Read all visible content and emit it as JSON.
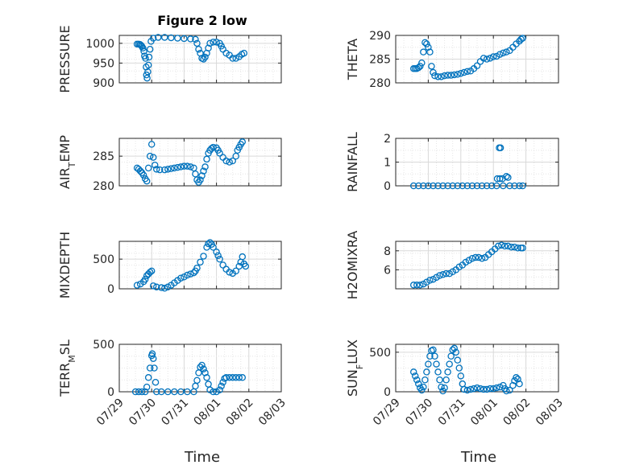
{
  "figure_title": "Figure 2 low",
  "x_axis_label": "Time",
  "x_tick_labels": [
    "07/29",
    "07/30",
    "07/31",
    "08/01",
    "08/02",
    "08/03"
  ],
  "marker_color": "#0072BD",
  "chart_data": [
    {
      "type": "scatter",
      "title": "Figure 2 low",
      "ylabel": "PRESSURE",
      "xlabel": "",
      "x_range": [
        0,
        4
      ],
      "ylim": [
        900,
        1020
      ],
      "yticks": [
        900,
        950,
        1000
      ],
      "grid": true,
      "marker": "open-circle",
      "points": [
        [
          0.55,
          998
        ],
        [
          0.6,
          998
        ],
        [
          0.64,
          997
        ],
        [
          0.67,
          995
        ],
        [
          0.7,
          992
        ],
        [
          0.73,
          988
        ],
        [
          0.76,
          980
        ],
        [
          0.78,
          968
        ],
        [
          0.81,
          962
        ],
        [
          0.83,
          940
        ],
        [
          0.84,
          920
        ],
        [
          0.86,
          912
        ],
        [
          0.88,
          928
        ],
        [
          0.9,
          945
        ],
        [
          0.92,
          965
        ],
        [
          0.95,
          985
        ],
        [
          0.98,
          1005
        ],
        [
          1.05,
          1013
        ],
        [
          1.2,
          1015
        ],
        [
          1.4,
          1015
        ],
        [
          1.6,
          1014
        ],
        [
          1.8,
          1013
        ],
        [
          2.0,
          1012
        ],
        [
          2.2,
          1011
        ],
        [
          2.35,
          1010
        ],
        [
          2.4,
          1000
        ],
        [
          2.45,
          985
        ],
        [
          2.5,
          975
        ],
        [
          2.55,
          962
        ],
        [
          2.6,
          960
        ],
        [
          2.65,
          965
        ],
        [
          2.7,
          975
        ],
        [
          2.75,
          988
        ],
        [
          2.8,
          1000
        ],
        [
          2.9,
          1003
        ],
        [
          3.0,
          1003
        ],
        [
          3.1,
          1000
        ],
        [
          3.15,
          993
        ],
        [
          3.2,
          985
        ],
        [
          3.3,
          975
        ],
        [
          3.4,
          970
        ],
        [
          3.5,
          962
        ],
        [
          3.6,
          962
        ],
        [
          3.7,
          966
        ],
        [
          3.78,
          972
        ],
        [
          3.85,
          975
        ]
      ]
    },
    {
      "type": "scatter",
      "ylabel": "THETA",
      "xlabel": "",
      "x_range": [
        0,
        4
      ],
      "ylim": [
        280,
        290
      ],
      "yticks": [
        280,
        285,
        290
      ],
      "grid": true,
      "marker": "open-circle",
      "points": [
        [
          0.55,
          283
        ],
        [
          0.6,
          283
        ],
        [
          0.65,
          283
        ],
        [
          0.7,
          283.2
        ],
        [
          0.75,
          283.5
        ],
        [
          0.8,
          284.2
        ],
        [
          0.85,
          286.5
        ],
        [
          0.9,
          288.5
        ],
        [
          0.95,
          288.2
        ],
        [
          1.0,
          287.5
        ],
        [
          1.05,
          286.5
        ],
        [
          1.1,
          283.5
        ],
        [
          1.15,
          282.2
        ],
        [
          1.2,
          281.5
        ],
        [
          1.3,
          281.3
        ],
        [
          1.4,
          281.3
        ],
        [
          1.5,
          281.5
        ],
        [
          1.6,
          281.6
        ],
        [
          1.7,
          281.6
        ],
        [
          1.8,
          281.7
        ],
        [
          1.9,
          281.8
        ],
        [
          2.0,
          282
        ],
        [
          2.1,
          282.2
        ],
        [
          2.2,
          282.4
        ],
        [
          2.3,
          282.5
        ],
        [
          2.4,
          283
        ],
        [
          2.5,
          283.6
        ],
        [
          2.6,
          284.5
        ],
        [
          2.7,
          285.2
        ],
        [
          2.8,
          285
        ],
        [
          2.9,
          285.2
        ],
        [
          3.0,
          285.5
        ],
        [
          3.1,
          285.6
        ],
        [
          3.2,
          286
        ],
        [
          3.3,
          286.3
        ],
        [
          3.4,
          286.5
        ],
        [
          3.5,
          286.8
        ],
        [
          3.6,
          287.5
        ],
        [
          3.7,
          288.2
        ],
        [
          3.8,
          288.8
        ],
        [
          3.85,
          289.2
        ],
        [
          3.9,
          289.4
        ]
      ]
    },
    {
      "type": "scatter",
      "ylabel": "AIR_TEMP",
      "xlabel": "",
      "x_range": [
        0,
        4
      ],
      "ylim": [
        280,
        288
      ],
      "yticks": [
        280,
        285
      ],
      "grid": true,
      "marker": "open-circle",
      "points": [
        [
          0.55,
          283
        ],
        [
          0.6,
          282.8
        ],
        [
          0.65,
          282.5
        ],
        [
          0.7,
          282.2
        ],
        [
          0.75,
          281.8
        ],
        [
          0.8,
          281.2
        ],
        [
          0.85,
          280.8
        ],
        [
          0.9,
          283
        ],
        [
          0.95,
          285
        ],
        [
          1.0,
          287
        ],
        [
          1.05,
          284.8
        ],
        [
          1.1,
          283.5
        ],
        [
          1.15,
          282.8
        ],
        [
          1.25,
          282.7
        ],
        [
          1.4,
          282.7
        ],
        [
          1.5,
          282.8
        ],
        [
          1.6,
          282.9
        ],
        [
          1.7,
          283
        ],
        [
          1.8,
          283.1
        ],
        [
          1.9,
          283.2
        ],
        [
          2.0,
          283.3
        ],
        [
          2.1,
          283.3
        ],
        [
          2.2,
          283.2
        ],
        [
          2.3,
          283
        ],
        [
          2.35,
          282
        ],
        [
          2.4,
          281
        ],
        [
          2.45,
          280.6
        ],
        [
          2.5,
          281
        ],
        [
          2.55,
          281.7
        ],
        [
          2.6,
          282.5
        ],
        [
          2.65,
          283.2
        ],
        [
          2.7,
          284.5
        ],
        [
          2.75,
          285.5
        ],
        [
          2.8,
          286
        ],
        [
          2.85,
          286.3
        ],
        [
          2.9,
          286.5
        ],
        [
          3.0,
          286.4
        ],
        [
          3.05,
          286
        ],
        [
          3.1,
          285.5
        ],
        [
          3.2,
          284.8
        ],
        [
          3.3,
          284.2
        ],
        [
          3.4,
          284
        ],
        [
          3.5,
          284.2
        ],
        [
          3.6,
          285
        ],
        [
          3.65,
          286
        ],
        [
          3.7,
          286.5
        ],
        [
          3.75,
          287
        ],
        [
          3.8,
          287.4
        ]
      ]
    },
    {
      "type": "scatter",
      "ylabel": "RAINFALL",
      "xlabel": "",
      "x_range": [
        0,
        4
      ],
      "ylim": [
        0,
        2
      ],
      "yticks": [
        0,
        1,
        2
      ],
      "grid": true,
      "marker": "open-circle",
      "points": [
        [
          0.55,
          0
        ],
        [
          0.7,
          0
        ],
        [
          0.85,
          0
        ],
        [
          1.0,
          0
        ],
        [
          1.15,
          0
        ],
        [
          1.3,
          0
        ],
        [
          1.45,
          0
        ],
        [
          1.6,
          0
        ],
        [
          1.75,
          0
        ],
        [
          1.9,
          0
        ],
        [
          2.05,
          0
        ],
        [
          2.2,
          0
        ],
        [
          2.35,
          0
        ],
        [
          2.5,
          0
        ],
        [
          2.65,
          0
        ],
        [
          2.8,
          0
        ],
        [
          2.95,
          0
        ],
        [
          3.1,
          0
        ],
        [
          3.12,
          0.3
        ],
        [
          3.2,
          0.3
        ],
        [
          3.18,
          1.6
        ],
        [
          3.22,
          1.6
        ],
        [
          3.28,
          0.3
        ],
        [
          3.3,
          0
        ],
        [
          3.4,
          0.4
        ],
        [
          3.45,
          0.35
        ],
        [
          3.5,
          0
        ],
        [
          3.65,
          0
        ],
        [
          3.8,
          0
        ],
        [
          3.9,
          0
        ]
      ]
    },
    {
      "type": "scatter",
      "ylabel": "MIXDEPTH",
      "xlabel": "",
      "x_range": [
        0,
        4
      ],
      "ylim": [
        0,
        800
      ],
      "yticks": [
        0,
        500
      ],
      "grid": true,
      "marker": "open-circle",
      "points": [
        [
          0.55,
          60
        ],
        [
          0.65,
          80
        ],
        [
          0.75,
          120
        ],
        [
          0.8,
          160
        ],
        [
          0.85,
          220
        ],
        [
          0.9,
          250
        ],
        [
          0.95,
          280
        ],
        [
          1.0,
          300
        ],
        [
          1.05,
          50
        ],
        [
          1.15,
          30
        ],
        [
          1.3,
          20
        ],
        [
          1.4,
          10
        ],
        [
          1.5,
          30
        ],
        [
          1.6,
          60
        ],
        [
          1.7,
          100
        ],
        [
          1.8,
          140
        ],
        [
          1.9,
          180
        ],
        [
          2.0,
          200
        ],
        [
          2.1,
          230
        ],
        [
          2.2,
          250
        ],
        [
          2.3,
          270
        ],
        [
          2.35,
          300
        ],
        [
          2.4,
          350
        ],
        [
          2.5,
          450
        ],
        [
          2.6,
          550
        ],
        [
          2.7,
          700
        ],
        [
          2.75,
          760
        ],
        [
          2.8,
          780
        ],
        [
          2.85,
          750
        ],
        [
          2.9,
          700
        ],
        [
          3.0,
          620
        ],
        [
          3.05,
          560
        ],
        [
          3.1,
          500
        ],
        [
          3.2,
          400
        ],
        [
          3.3,
          330
        ],
        [
          3.4,
          280
        ],
        [
          3.5,
          260
        ],
        [
          3.6,
          300
        ],
        [
          3.7,
          380
        ],
        [
          3.75,
          450
        ],
        [
          3.8,
          540
        ],
        [
          3.85,
          420
        ],
        [
          3.9,
          380
        ]
      ]
    },
    {
      "type": "scatter",
      "ylabel": "H2OMIXRA",
      "xlabel": "",
      "x_range": [
        0,
        4
      ],
      "ylim": [
        4,
        9
      ],
      "yticks": [
        6,
        8
      ],
      "grid": true,
      "marker": "open-circle",
      "points": [
        [
          0.55,
          4.4
        ],
        [
          0.65,
          4.4
        ],
        [
          0.75,
          4.4
        ],
        [
          0.85,
          4.5
        ],
        [
          0.95,
          4.7
        ],
        [
          1.05,
          4.9
        ],
        [
          1.15,
          5.0
        ],
        [
          1.25,
          5.2
        ],
        [
          1.35,
          5.4
        ],
        [
          1.45,
          5.5
        ],
        [
          1.55,
          5.6
        ],
        [
          1.65,
          5.6
        ],
        [
          1.75,
          5.8
        ],
        [
          1.85,
          6.0
        ],
        [
          1.95,
          6.3
        ],
        [
          2.05,
          6.5
        ],
        [
          2.15,
          6.8
        ],
        [
          2.25,
          7.0
        ],
        [
          2.35,
          7.2
        ],
        [
          2.45,
          7.3
        ],
        [
          2.55,
          7.3
        ],
        [
          2.65,
          7.2
        ],
        [
          2.75,
          7.3
        ],
        [
          2.85,
          7.6
        ],
        [
          2.95,
          7.9
        ],
        [
          3.05,
          8.2
        ],
        [
          3.15,
          8.5
        ],
        [
          3.25,
          8.6
        ],
        [
          3.35,
          8.5
        ],
        [
          3.45,
          8.5
        ],
        [
          3.55,
          8.4
        ],
        [
          3.65,
          8.4
        ],
        [
          3.75,
          8.3
        ],
        [
          3.85,
          8.3
        ],
        [
          3.9,
          8.3
        ]
      ]
    },
    {
      "type": "scatter",
      "ylabel": "TERR_MSL",
      "xlabel": "Time",
      "x_range": [
        0,
        4
      ],
      "ylim": [
        0,
        500
      ],
      "yticks": [
        0,
        500
      ],
      "grid": true,
      "marker": "open-circle",
      "points": [
        [
          0.5,
          0
        ],
        [
          0.6,
          0
        ],
        [
          0.7,
          0
        ],
        [
          0.8,
          0
        ],
        [
          0.85,
          50
        ],
        [
          0.9,
          150
        ],
        [
          0.95,
          250
        ],
        [
          1.0,
          380
        ],
        [
          1.02,
          400
        ],
        [
          1.05,
          350
        ],
        [
          1.08,
          250
        ],
        [
          1.12,
          100
        ],
        [
          1.15,
          0
        ],
        [
          1.3,
          0
        ],
        [
          1.5,
          0
        ],
        [
          1.7,
          0
        ],
        [
          1.9,
          0
        ],
        [
          2.1,
          0
        ],
        [
          2.3,
          0
        ],
        [
          2.35,
          60
        ],
        [
          2.4,
          120
        ],
        [
          2.45,
          200
        ],
        [
          2.5,
          260
        ],
        [
          2.55,
          280
        ],
        [
          2.6,
          240
        ],
        [
          2.65,
          200
        ],
        [
          2.7,
          150
        ],
        [
          2.75,
          80
        ],
        [
          2.8,
          20
        ],
        [
          2.9,
          0
        ],
        [
          3.0,
          0
        ],
        [
          3.1,
          20
        ],
        [
          3.15,
          60
        ],
        [
          3.2,
          100
        ],
        [
          3.25,
          140
        ],
        [
          3.3,
          150
        ],
        [
          3.4,
          150
        ],
        [
          3.5,
          150
        ],
        [
          3.6,
          150
        ],
        [
          3.7,
          150
        ],
        [
          3.8,
          150
        ]
      ]
    },
    {
      "type": "scatter",
      "ylabel": "SUN_FLUX",
      "xlabel": "Time",
      "x_range": [
        0,
        4
      ],
      "ylim": [
        0,
        600
      ],
      "yticks": [
        0,
        500
      ],
      "grid": true,
      "marker": "open-circle",
      "points": [
        [
          0.55,
          250
        ],
        [
          0.6,
          200
        ],
        [
          0.65,
          150
        ],
        [
          0.7,
          100
        ],
        [
          0.75,
          50
        ],
        [
          0.8,
          20
        ],
        [
          0.85,
          60
        ],
        [
          0.9,
          150
        ],
        [
          0.95,
          250
        ],
        [
          1.0,
          350
        ],
        [
          1.05,
          450
        ],
        [
          1.1,
          520
        ],
        [
          1.15,
          530
        ],
        [
          1.2,
          450
        ],
        [
          1.25,
          350
        ],
        [
          1.3,
          250
        ],
        [
          1.35,
          150
        ],
        [
          1.4,
          60
        ],
        [
          1.45,
          10
        ],
        [
          1.5,
          50
        ],
        [
          1.55,
          150
        ],
        [
          1.6,
          250
        ],
        [
          1.65,
          350
        ],
        [
          1.7,
          450
        ],
        [
          1.75,
          530
        ],
        [
          1.8,
          550
        ],
        [
          1.85,
          500
        ],
        [
          1.9,
          400
        ],
        [
          1.95,
          300
        ],
        [
          2.0,
          200
        ],
        [
          2.05,
          100
        ],
        [
          2.1,
          30
        ],
        [
          2.2,
          20
        ],
        [
          2.3,
          30
        ],
        [
          2.4,
          40
        ],
        [
          2.5,
          50
        ],
        [
          2.6,
          40
        ],
        [
          2.7,
          30
        ],
        [
          2.8,
          30
        ],
        [
          2.9,
          40
        ],
        [
          3.0,
          40
        ],
        [
          3.1,
          50
        ],
        [
          3.2,
          60
        ],
        [
          3.3,
          80
        ],
        [
          3.35,
          40
        ],
        [
          3.4,
          10
        ],
        [
          3.5,
          20
        ],
        [
          3.6,
          80
        ],
        [
          3.65,
          140
        ],
        [
          3.7,
          180
        ],
        [
          3.75,
          160
        ],
        [
          3.8,
          100
        ]
      ]
    }
  ]
}
